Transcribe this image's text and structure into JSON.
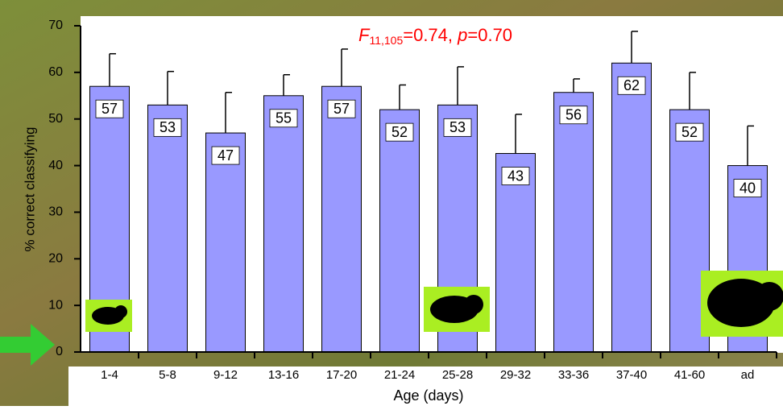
{
  "chart_data": {
    "type": "bar",
    "annotation_parts": [
      "F",
      "11,105",
      "=0.74, ",
      "p",
      "=0.70"
    ],
    "xlabel": "Age (days)",
    "ylabel": "% correct classifying",
    "categories": [
      "1-4",
      "5-8",
      "9-12",
      "13-16",
      "17-20",
      "21-24",
      "25-28",
      "29-32",
      "33-36",
      "37-40",
      "41-60",
      "ad"
    ],
    "values": [
      57,
      53,
      47,
      55,
      57,
      52,
      53,
      42.6,
      55.7,
      62,
      52,
      40
    ],
    "value_labels": [
      "57",
      "53",
      "47",
      "55",
      "57",
      "52",
      "53",
      "43",
      "56",
      "62",
      "52",
      "40"
    ],
    "errors": [
      7,
      7.2,
      8.7,
      4.5,
      8,
      5.3,
      8.2,
      8.4,
      2.9,
      6.8,
      8,
      8.5
    ],
    "color": "#9999ff",
    "ylim": [
      0,
      70
    ],
    "yticks": [
      0,
      10,
      20,
      30,
      40,
      50,
      60,
      70
    ]
  }
}
